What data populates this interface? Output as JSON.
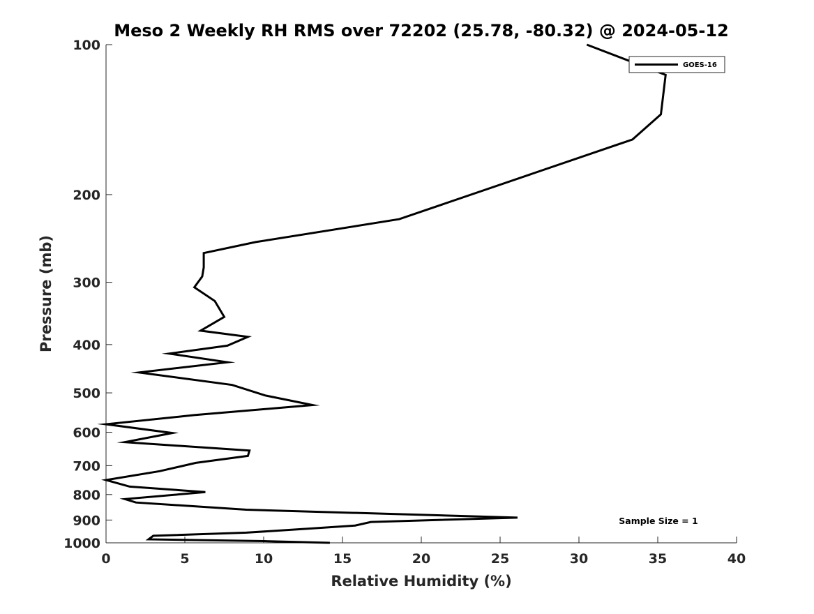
{
  "chart_data": {
    "type": "line",
    "title": "Meso 2 Weekly RH RMS over 72202 (25.78, -80.32) @ 2024-05-12",
    "xlabel": "Relative Humidity (%)",
    "ylabel": "Pressure (mb)",
    "xlim": [
      0,
      40
    ],
    "ylim": [
      1000,
      100
    ],
    "yscale": "log",
    "y_reversed": true,
    "x_ticks": [
      "0",
      "5",
      "10",
      "15",
      "20",
      "25",
      "30",
      "35",
      "40"
    ],
    "x_tick_values": [
      0,
      5,
      10,
      15,
      20,
      25,
      30,
      35,
      40
    ],
    "y_ticks": [
      "100",
      "200",
      "300",
      "400",
      "500",
      "600",
      "700",
      "800",
      "900",
      "1000"
    ],
    "y_tick_values": [
      100,
      200,
      300,
      400,
      500,
      600,
      700,
      800,
      900,
      1000
    ],
    "grid": false,
    "legend_position": "top-right",
    "annotation": "Sample Size = 1",
    "series": [
      {
        "name": "GOES-16",
        "color": "#000000",
        "x": [
          30.5,
          35.5,
          35.2,
          33.4,
          18.6,
          9.5,
          6.2,
          6.2,
          6.1,
          5.6,
          6.9,
          7.5,
          6.0,
          9.0,
          7.7,
          4.0,
          7.7,
          2.1,
          8.0,
          10.1,
          13.1,
          5.6,
          0.0,
          4.2,
          1.2,
          9.1,
          9.0,
          5.7,
          3.4,
          0.0,
          1.5,
          6.3,
          1.2,
          1.9,
          8.9,
          26.1,
          16.8,
          15.8,
          12.8,
          8.9,
          3.0,
          2.7,
          10.0,
          14.2
        ],
        "y": [
          100,
          115,
          138,
          155,
          224,
          249,
          262,
          280,
          292,
          307,
          327,
          352,
          375,
          386,
          402,
          417,
          434,
          455,
          482,
          506,
          529,
          554,
          578,
          602,
          628,
          653,
          669,
          691,
          718,
          748,
          771,
          791,
          817,
          830,
          858,
          890,
          908,
          923,
          937,
          954,
          968,
          984,
          992,
          1000
        ]
      }
    ]
  }
}
